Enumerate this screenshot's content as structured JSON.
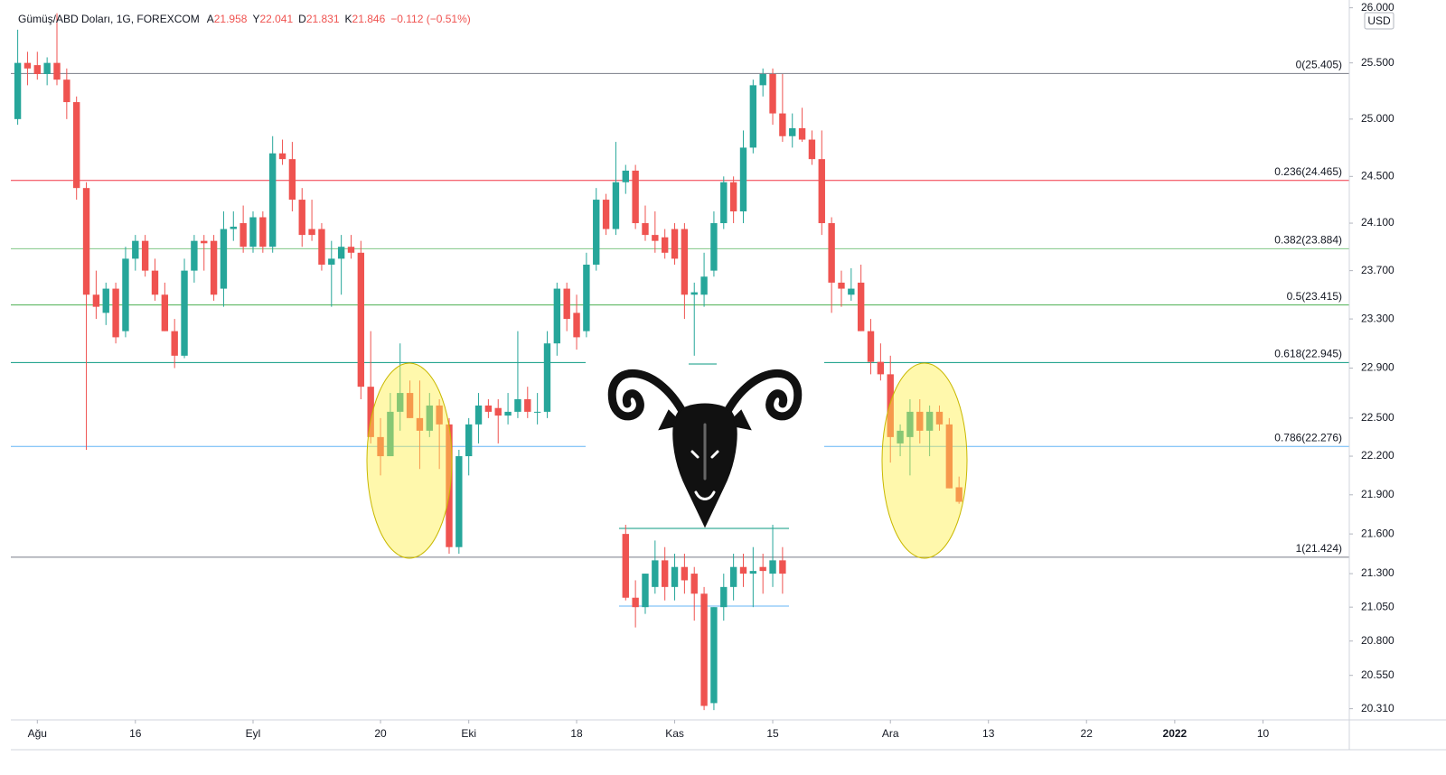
{
  "chart_data": {
    "type": "candlestick",
    "title": "Gümüş/ABD Doları, 1G, FOREXCOM",
    "quote": [
      {
        "label": "A",
        "value": 21.958
      },
      {
        "label": "Y",
        "value": 22.041
      },
      {
        "label": "D",
        "value": 21.831
      },
      {
        "label": "K",
        "value": 21.846
      }
    ],
    "change": "−0.112 (−0.51%)",
    "currency": "USD",
    "up_color": "#26a69a",
    "down_color": "#ef5350",
    "log_scale": true,
    "ylim": [
      20.23,
      26.03
    ],
    "yticks": [
      {
        "value": 26.0,
        "label": "26.000"
      },
      {
        "value": 25.5,
        "label": "25.500"
      },
      {
        "value": 25.0,
        "label": "25.000"
      },
      {
        "value": 24.5,
        "label": "24.500"
      },
      {
        "value": 24.1,
        "label": "24.100"
      },
      {
        "value": 23.7,
        "label": "23.700"
      },
      {
        "value": 23.3,
        "label": "23.300"
      },
      {
        "value": 22.9,
        "label": "22.900"
      },
      {
        "value": 22.5,
        "label": "22.500"
      },
      {
        "value": 22.2,
        "label": "22.200"
      },
      {
        "value": 21.9,
        "label": "21.900"
      },
      {
        "value": 21.6,
        "label": "21.600"
      },
      {
        "value": 21.3,
        "label": "21.300"
      },
      {
        "value": 21.05,
        "label": "21.050"
      },
      {
        "value": 20.8,
        "label": "20.800"
      },
      {
        "value": 20.55,
        "label": "20.550"
      },
      {
        "value": 20.31,
        "label": "20.310"
      }
    ],
    "xlim": [
      -0.7,
      135.8
    ],
    "xticks": [
      {
        "value": 2,
        "label": "Ağu"
      },
      {
        "value": 12,
        "label": "16"
      },
      {
        "value": 24,
        "label": "Eyl"
      },
      {
        "value": 37,
        "label": "20"
      },
      {
        "value": 46,
        "label": "Eki"
      },
      {
        "value": 57,
        "label": "18"
      },
      {
        "value": 67,
        "label": "Kas"
      },
      {
        "value": 77,
        "label": "15"
      },
      {
        "value": 89,
        "label": "Ara"
      },
      {
        "value": 99,
        "label": "13"
      },
      {
        "value": 109,
        "label": "22"
      },
      {
        "value": 118,
        "label": "2022"
      },
      {
        "value": 127,
        "label": "10"
      }
    ],
    "levels": [
      {
        "label": "0(25.405)",
        "value": 25.405,
        "color": "#787b86"
      },
      {
        "label": "0.236(24.465)",
        "value": 24.465,
        "color": "#f23645"
      },
      {
        "label": "0.382(23.884)",
        "value": 23.884,
        "color": "#81c784"
      },
      {
        "label": "0.5(23.415)",
        "value": 23.415,
        "color": "#4caf50"
      },
      {
        "label": "0.618(22.945)",
        "value": 22.945,
        "color": "#089981"
      },
      {
        "label": "0.786(22.276)",
        "value": 22.276,
        "color": "#64b5f6"
      },
      {
        "label": "1(21.424)",
        "value": 21.424,
        "color": "#787b86"
      }
    ],
    "open": [
      25.0,
      25.5,
      25.48,
      25.4,
      25.5,
      25.35,
      25.15,
      24.4,
      23.5,
      23.35,
      23.55,
      23.2,
      23.8,
      23.95,
      23.7,
      23.5,
      23.2,
      23.0,
      23.7,
      23.95,
      23.95,
      23.55,
      24.05,
      24.1,
      23.9,
      24.15,
      23.9,
      24.7,
      24.65,
      24.3,
      24.05,
      24.05,
      23.75,
      23.8,
      23.9,
      23.85,
      22.75,
      22.35,
      22.2,
      22.55,
      22.7,
      22.5,
      22.4,
      22.6,
      22.45,
      21.5,
      22.2,
      22.45,
      22.6,
      22.58,
      22.52,
      22.55,
      22.65,
      22.55,
      22.55,
      23.1,
      23.55,
      23.35,
      23.2,
      23.75,
      24.3,
      24.05,
      24.45,
      24.55,
      24.1,
      24.0,
      23.98,
      24.05,
      24.05,
      23.5,
      23.5,
      23.7,
      24.1,
      24.45,
      24.2,
      24.75,
      25.3,
      25.4,
      25.05,
      24.85,
      24.92,
      24.82,
      24.65,
      24.1,
      23.6,
      23.5,
      23.6,
      23.2,
      22.95,
      22.85,
      22.3,
      22.35,
      22.55,
      22.4,
      22.55,
      22.45,
      21.958
    ],
    "high": [
      25.8,
      25.6,
      25.6,
      25.55,
      25.95,
      25.45,
      25.2,
      24.45,
      23.7,
      23.6,
      23.6,
      23.9,
      24.0,
      24.0,
      23.8,
      23.6,
      23.3,
      23.8,
      24.0,
      24.0,
      24.0,
      24.2,
      24.2,
      24.25,
      24.2,
      24.2,
      24.85,
      24.82,
      24.8,
      24.4,
      24.3,
      24.1,
      23.95,
      24.0,
      24.0,
      23.95,
      23.2,
      22.5,
      22.7,
      23.1,
      22.8,
      22.8,
      22.7,
      22.65,
      22.5,
      22.25,
      22.5,
      22.7,
      22.65,
      22.65,
      22.7,
      23.2,
      22.75,
      22.7,
      23.2,
      23.6,
      23.6,
      23.5,
      23.85,
      24.4,
      24.35,
      24.8,
      24.6,
      24.6,
      24.25,
      24.2,
      24.05,
      24.1,
      24.1,
      23.6,
      23.85,
      24.2,
      24.5,
      24.5,
      24.9,
      25.35,
      25.45,
      25.45,
      25.4,
      25.05,
      25.1,
      24.9,
      24.9,
      24.15,
      23.7,
      23.72,
      23.75,
      23.3,
      23.1,
      23.0,
      22.45,
      22.65,
      22.65,
      22.6,
      22.6,
      22.5,
      22.041
    ],
    "low": [
      24.95,
      25.3,
      25.35,
      25.3,
      25.3,
      25.0,
      24.3,
      22.25,
      23.3,
      23.25,
      23.1,
      23.15,
      23.7,
      23.65,
      23.45,
      23.2,
      22.9,
      22.98,
      23.6,
      23.7,
      23.45,
      23.4,
      23.95,
      23.85,
      23.85,
      23.85,
      23.85,
      24.6,
      24.2,
      23.9,
      23.95,
      23.7,
      23.4,
      23.5,
      23.8,
      22.65,
      22.3,
      22.05,
      22.2,
      22.4,
      22.5,
      22.1,
      22.35,
      22.1,
      21.45,
      21.45,
      22.05,
      22.3,
      22.5,
      22.3,
      22.45,
      22.5,
      22.5,
      22.45,
      22.5,
      23.0,
      23.2,
      23.05,
      23.15,
      23.7,
      24.0,
      24.0,
      24.35,
      24.05,
      23.95,
      23.85,
      23.8,
      23.75,
      23.3,
      23.0,
      23.4,
      23.65,
      24.05,
      24.1,
      24.1,
      24.7,
      25.2,
      24.95,
      24.8,
      24.75,
      24.8,
      24.6,
      24.0,
      23.35,
      23.4,
      23.45,
      23.2,
      22.85,
      22.8,
      22.15,
      22.2,
      22.05,
      22.3,
      22.2,
      22.4,
      21.95,
      21.831
    ],
    "close": [
      25.5,
      25.45,
      25.4,
      25.5,
      25.35,
      25.15,
      24.4,
      23.5,
      23.4,
      23.55,
      23.15,
      23.8,
      23.95,
      23.7,
      23.5,
      23.2,
      23.0,
      23.7,
      23.95,
      23.93,
      23.5,
      24.05,
      24.07,
      23.9,
      24.15,
      23.9,
      24.7,
      24.65,
      24.3,
      24.0,
      24.0,
      23.75,
      23.8,
      23.9,
      23.85,
      22.75,
      22.35,
      22.2,
      22.55,
      22.7,
      22.5,
      22.4,
      22.6,
      22.45,
      21.5,
      22.2,
      22.45,
      22.6,
      22.55,
      22.52,
      22.55,
      22.65,
      22.55,
      22.55,
      23.1,
      23.55,
      23.3,
      23.15,
      23.75,
      24.3,
      24.05,
      24.45,
      24.55,
      24.1,
      24.0,
      23.95,
      23.85,
      23.8,
      23.5,
      23.52,
      23.65,
      24.1,
      24.45,
      24.2,
      24.75,
      25.3,
      25.4,
      25.05,
      24.85,
      24.92,
      24.82,
      24.65,
      24.1,
      23.6,
      23.55,
      23.55,
      23.2,
      22.95,
      22.85,
      22.35,
      22.4,
      22.55,
      22.4,
      22.55,
      22.45,
      21.95,
      21.846
    ],
    "inset": {
      "x": [
        62,
        63,
        64,
        65,
        66,
        67,
        68,
        69,
        70,
        71,
        72,
        73,
        74,
        75,
        76,
        77,
        78
      ],
      "open": [
        21.6,
        21.12,
        21.05,
        21.2,
        21.4,
        21.2,
        21.35,
        21.3,
        21.15,
        20.35,
        21.05,
        21.2,
        21.35,
        21.3,
        21.35,
        21.3,
        21.4
      ],
      "high": [
        21.67,
        21.25,
        21.3,
        21.55,
        21.5,
        21.45,
        21.45,
        21.35,
        21.2,
        21.05,
        21.3,
        21.45,
        21.45,
        21.5,
        21.45,
        21.67,
        21.5
      ],
      "low": [
        21.1,
        20.9,
        21.0,
        21.15,
        21.1,
        21.1,
        21.15,
        20.95,
        20.3,
        20.3,
        20.95,
        21.1,
        21.2,
        21.05,
        21.15,
        21.2,
        21.15
      ],
      "close": [
        21.12,
        21.05,
        21.3,
        21.4,
        21.2,
        21.35,
        21.25,
        21.15,
        20.33,
        21.05,
        21.2,
        21.35,
        21.3,
        21.32,
        21.32,
        21.4,
        21.3
      ]
    }
  }
}
